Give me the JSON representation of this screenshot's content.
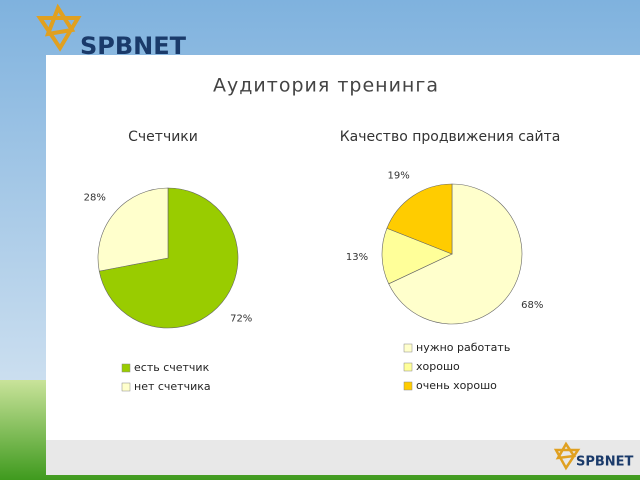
{
  "logo_text": "SPBNET",
  "slide_title": "Аудитория тренинга",
  "chart_data": [
    {
      "type": "pie",
      "title": "Счетчики",
      "categories": [
        "есть счетчик",
        "нет счетчика"
      ],
      "values": [
        72,
        28
      ],
      "value_labels": [
        "72%",
        "28%"
      ],
      "colors": [
        "#99cc00",
        "#ffffcc"
      ]
    },
    {
      "type": "pie",
      "title": "Качество продвижения сайта",
      "categories": [
        "нужно работать",
        "хорошо",
        "очень хорошо"
      ],
      "values": [
        68,
        13,
        19
      ],
      "value_labels": [
        "68%",
        "13%",
        "19%"
      ],
      "colors": [
        "#ffffcc",
        "#ffff99",
        "#ffcc00"
      ]
    }
  ]
}
